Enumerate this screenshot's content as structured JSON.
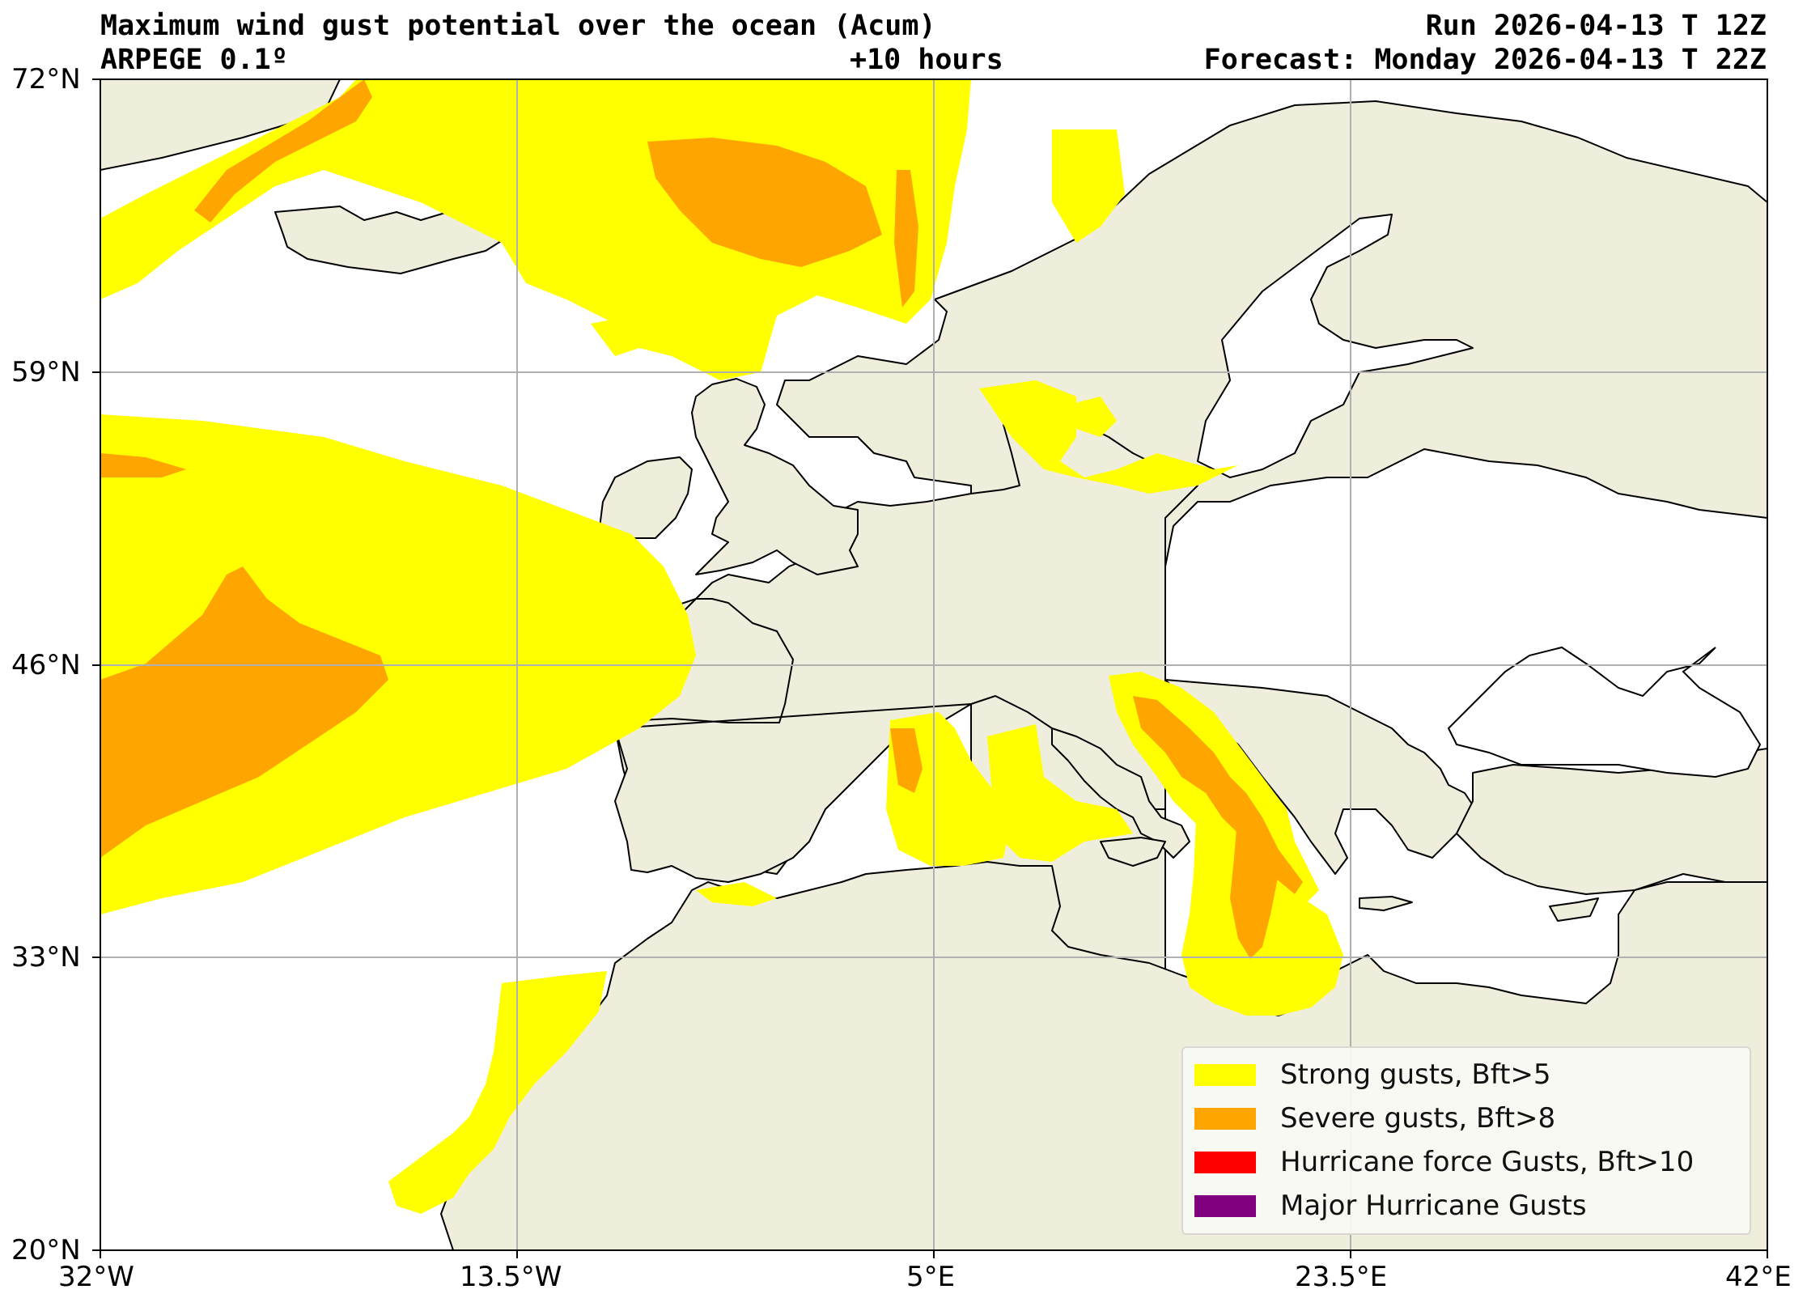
{
  "header": {
    "title": "Maximum wind gust potential over the ocean (Acum)",
    "model": "ARPEGE 0.1º",
    "lead": "+10 hours",
    "run": "Run 2026-04-13 T 12Z",
    "forecast": "Forecast: Monday 2026-04-13 T 22Z"
  },
  "axes": {
    "lat_ticks": [
      "72°N",
      "59°N",
      "46°N",
      "33°N",
      "20°N"
    ],
    "lon_ticks": [
      "32°W",
      "13.5°W",
      "5°E",
      "23.5°E",
      "42°E"
    ],
    "grid": true
  },
  "legend": {
    "placement": "bottom-right",
    "items": [
      {
        "label": "Strong gusts, Bft>5",
        "color": "#ffff00"
      },
      {
        "label": "Severe gusts, Bft>8",
        "color": "#ffa500"
      },
      {
        "label": "Hurricane force Gusts, Bft>10",
        "color": "#ff0000"
      },
      {
        "label": "Major Hurricane Gusts",
        "color": "#800080"
      }
    ]
  },
  "colors": {
    "land": "#efeedc",
    "ocean": "#ffffff",
    "coast": "#000000",
    "grid": "#b0b0b0"
  }
}
